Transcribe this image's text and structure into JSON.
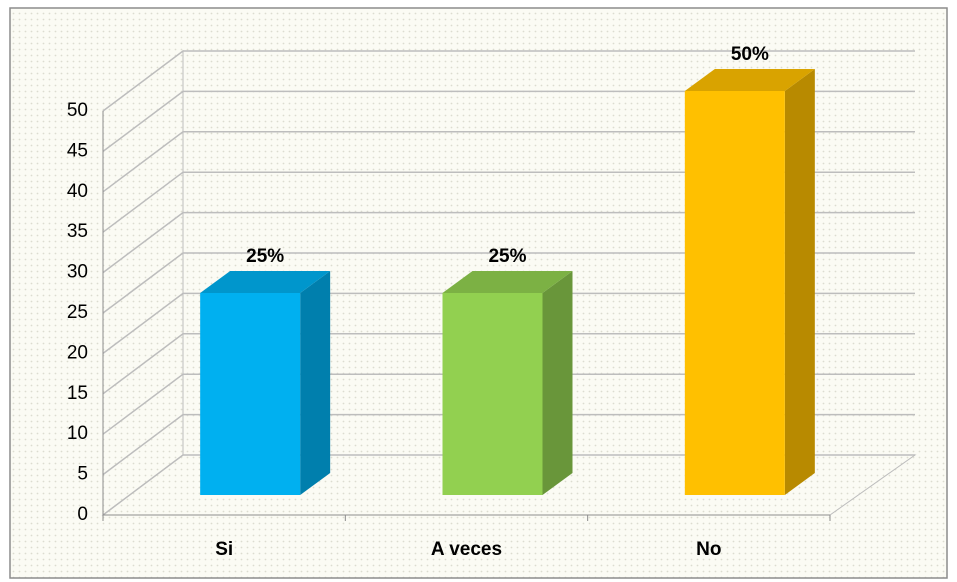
{
  "chart_data": {
    "type": "bar3d",
    "categories": [
      "Si",
      "A veces",
      "No"
    ],
    "values": [
      25,
      25,
      50
    ],
    "value_labels": [
      "25%",
      "25%",
      "50%"
    ],
    "colors": [
      "#00b0f0",
      "#92d050",
      "#ffc000"
    ],
    "ylim": [
      0,
      50
    ],
    "yticks": [
      0,
      5,
      10,
      15,
      20,
      25,
      30,
      35,
      40,
      45,
      50
    ],
    "grid": true
  }
}
